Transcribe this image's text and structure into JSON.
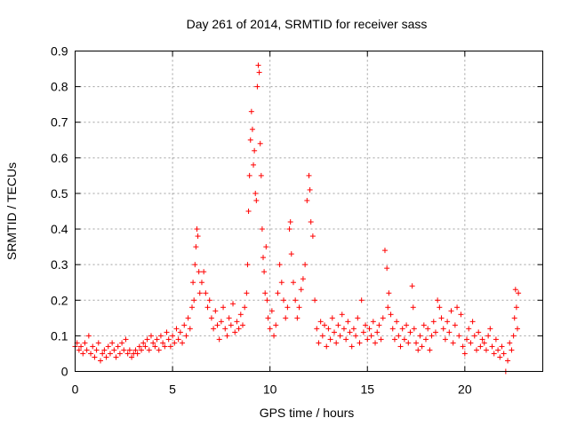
{
  "chart_data": {
    "type": "scatter",
    "title": "Day 261 of 2014, SRMTID for receiver sass",
    "xlabel": "GPS time / hours",
    "ylabel": "SRMTID / TECUs",
    "xlim": [
      0,
      24
    ],
    "ylim": [
      0,
      0.9
    ],
    "xticks": [
      0,
      5,
      10,
      15,
      20
    ],
    "xtick_labels": [
      "0",
      "5",
      "10",
      "15",
      "20"
    ],
    "yticks": [
      0,
      0.1,
      0.2,
      0.3,
      0.4,
      0.5,
      0.6,
      0.7,
      0.8,
      0.9
    ],
    "ytick_labels": [
      "0",
      "0.1",
      "0.2",
      "0.3",
      "0.4",
      "0.5",
      "0.6",
      "0.7",
      "0.8",
      "0.9"
    ],
    "grid": true,
    "marker": "+",
    "color": "#ff0000",
    "series": [
      {
        "name": "SRMTID",
        "points": [
          [
            0.0,
            0.07
          ],
          [
            0.1,
            0.08
          ],
          [
            0.2,
            0.06
          ],
          [
            0.3,
            0.07
          ],
          [
            0.4,
            0.05
          ],
          [
            0.5,
            0.08
          ],
          [
            0.6,
            0.06
          ],
          [
            0.7,
            0.1
          ],
          [
            0.8,
            0.05
          ],
          [
            0.9,
            0.07
          ],
          [
            1.0,
            0.04
          ],
          [
            1.1,
            0.06
          ],
          [
            1.2,
            0.08
          ],
          [
            1.3,
            0.03
          ],
          [
            1.4,
            0.05
          ],
          [
            1.5,
            0.06
          ],
          [
            1.6,
            0.04
          ],
          [
            1.7,
            0.07
          ],
          [
            1.8,
            0.05
          ],
          [
            1.9,
            0.08
          ],
          [
            2.0,
            0.06
          ],
          [
            2.1,
            0.04
          ],
          [
            2.2,
            0.07
          ],
          [
            2.3,
            0.05
          ],
          [
            2.4,
            0.08
          ],
          [
            2.5,
            0.06
          ],
          [
            2.6,
            0.09
          ],
          [
            2.7,
            0.05
          ],
          [
            2.8,
            0.06
          ],
          [
            2.9,
            0.04
          ],
          [
            3.0,
            0.05
          ],
          [
            3.1,
            0.06
          ],
          [
            3.2,
            0.05
          ],
          [
            3.3,
            0.07
          ],
          [
            3.4,
            0.06
          ],
          [
            3.5,
            0.08
          ],
          [
            3.6,
            0.07
          ],
          [
            3.7,
            0.09
          ],
          [
            3.8,
            0.06
          ],
          [
            3.9,
            0.1
          ],
          [
            4.0,
            0.08
          ],
          [
            4.1,
            0.07
          ],
          [
            4.2,
            0.09
          ],
          [
            4.3,
            0.06
          ],
          [
            4.4,
            0.1
          ],
          [
            4.5,
            0.08
          ],
          [
            4.6,
            0.07
          ],
          [
            4.7,
            0.11
          ],
          [
            4.8,
            0.09
          ],
          [
            4.9,
            0.07
          ],
          [
            5.0,
            0.1
          ],
          [
            5.1,
            0.08
          ],
          [
            5.2,
            0.12
          ],
          [
            5.3,
            0.09
          ],
          [
            5.4,
            0.11
          ],
          [
            5.5,
            0.08
          ],
          [
            5.6,
            0.13
          ],
          [
            5.7,
            0.1
          ],
          [
            5.8,
            0.15
          ],
          [
            5.9,
            0.12
          ],
          [
            6.0,
            0.18
          ],
          [
            6.05,
            0.25
          ],
          [
            6.1,
            0.2
          ],
          [
            6.15,
            0.3
          ],
          [
            6.2,
            0.35
          ],
          [
            6.25,
            0.4
          ],
          [
            6.3,
            0.38
          ],
          [
            6.35,
            0.28
          ],
          [
            6.4,
            0.22
          ],
          [
            6.5,
            0.25
          ],
          [
            6.6,
            0.28
          ],
          [
            6.7,
            0.22
          ],
          [
            6.8,
            0.18
          ],
          [
            6.9,
            0.2
          ],
          [
            7.0,
            0.15
          ],
          [
            7.1,
            0.12
          ],
          [
            7.2,
            0.17
          ],
          [
            7.3,
            0.13
          ],
          [
            7.4,
            0.09
          ],
          [
            7.5,
            0.14
          ],
          [
            7.6,
            0.18
          ],
          [
            7.7,
            0.12
          ],
          [
            7.8,
            0.1
          ],
          [
            7.9,
            0.15
          ],
          [
            8.0,
            0.13
          ],
          [
            8.1,
            0.19
          ],
          [
            8.2,
            0.11
          ],
          [
            8.3,
            0.14
          ],
          [
            8.4,
            0.12
          ],
          [
            8.5,
            0.16
          ],
          [
            8.6,
            0.13
          ],
          [
            8.7,
            0.18
          ],
          [
            8.8,
            0.22
          ],
          [
            8.85,
            0.3
          ],
          [
            8.9,
            0.45
          ],
          [
            8.95,
            0.55
          ],
          [
            9.0,
            0.65
          ],
          [
            9.05,
            0.73
          ],
          [
            9.1,
            0.68
          ],
          [
            9.15,
            0.58
          ],
          [
            9.2,
            0.62
          ],
          [
            9.25,
            0.5
          ],
          [
            9.3,
            0.48
          ],
          [
            9.35,
            0.8
          ],
          [
            9.4,
            0.86
          ],
          [
            9.45,
            0.84
          ],
          [
            9.5,
            0.64
          ],
          [
            9.55,
            0.55
          ],
          [
            9.6,
            0.4
          ],
          [
            9.65,
            0.32
          ],
          [
            9.7,
            0.28
          ],
          [
            9.75,
            0.22
          ],
          [
            9.8,
            0.35
          ],
          [
            9.85,
            0.2
          ],
          [
            9.9,
            0.15
          ],
          [
            10.0,
            0.12
          ],
          [
            10.1,
            0.17
          ],
          [
            10.2,
            0.1
          ],
          [
            10.3,
            0.13
          ],
          [
            10.4,
            0.22
          ],
          [
            10.5,
            0.3
          ],
          [
            10.6,
            0.25
          ],
          [
            10.7,
            0.2
          ],
          [
            10.8,
            0.15
          ],
          [
            10.9,
            0.18
          ],
          [
            11.0,
            0.4
          ],
          [
            11.05,
            0.42
          ],
          [
            11.1,
            0.33
          ],
          [
            11.2,
            0.25
          ],
          [
            11.3,
            0.2
          ],
          [
            11.4,
            0.15
          ],
          [
            11.5,
            0.18
          ],
          [
            11.6,
            0.23
          ],
          [
            11.7,
            0.26
          ],
          [
            11.8,
            0.3
          ],
          [
            11.9,
            0.48
          ],
          [
            12.0,
            0.55
          ],
          [
            12.05,
            0.51
          ],
          [
            12.1,
            0.42
          ],
          [
            12.2,
            0.38
          ],
          [
            12.3,
            0.2
          ],
          [
            12.4,
            0.12
          ],
          [
            12.5,
            0.08
          ],
          [
            12.6,
            0.14
          ],
          [
            12.7,
            0.1
          ],
          [
            12.8,
            0.13
          ],
          [
            12.9,
            0.07
          ],
          [
            13.0,
            0.12
          ],
          [
            13.1,
            0.09
          ],
          [
            13.2,
            0.15
          ],
          [
            13.3,
            0.11
          ],
          [
            13.4,
            0.08
          ],
          [
            13.5,
            0.13
          ],
          [
            13.6,
            0.1
          ],
          [
            13.7,
            0.16
          ],
          [
            13.8,
            0.12
          ],
          [
            13.9,
            0.09
          ],
          [
            14.0,
            0.14
          ],
          [
            14.1,
            0.11
          ],
          [
            14.2,
            0.07
          ],
          [
            14.3,
            0.12
          ],
          [
            14.4,
            0.1
          ],
          [
            14.5,
            0.15
          ],
          [
            14.6,
            0.08
          ],
          [
            14.7,
            0.2
          ],
          [
            14.8,
            0.11
          ],
          [
            14.9,
            0.13
          ],
          [
            15.0,
            0.09
          ],
          [
            15.1,
            0.12
          ],
          [
            15.2,
            0.1
          ],
          [
            15.3,
            0.14
          ],
          [
            15.4,
            0.08
          ],
          [
            15.5,
            0.11
          ],
          [
            15.6,
            0.13
          ],
          [
            15.7,
            0.09
          ],
          [
            15.8,
            0.15
          ],
          [
            15.9,
            0.34
          ],
          [
            16.0,
            0.29
          ],
          [
            16.05,
            0.18
          ],
          [
            16.1,
            0.22
          ],
          [
            16.2,
            0.16
          ],
          [
            16.3,
            0.12
          ],
          [
            16.4,
            0.09
          ],
          [
            16.5,
            0.14
          ],
          [
            16.6,
            0.1
          ],
          [
            16.7,
            0.07
          ],
          [
            16.8,
            0.12
          ],
          [
            16.9,
            0.09
          ],
          [
            17.0,
            0.13
          ],
          [
            17.1,
            0.08
          ],
          [
            17.2,
            0.11
          ],
          [
            17.3,
            0.24
          ],
          [
            17.35,
            0.18
          ],
          [
            17.4,
            0.12
          ],
          [
            17.5,
            0.08
          ],
          [
            17.6,
            0.06
          ],
          [
            17.7,
            0.1
          ],
          [
            17.8,
            0.07
          ],
          [
            17.9,
            0.13
          ],
          [
            18.0,
            0.09
          ],
          [
            18.1,
            0.12
          ],
          [
            18.2,
            0.06
          ],
          [
            18.3,
            0.1
          ],
          [
            18.4,
            0.14
          ],
          [
            18.5,
            0.11
          ],
          [
            18.6,
            0.2
          ],
          [
            18.7,
            0.18
          ],
          [
            18.8,
            0.15
          ],
          [
            18.9,
            0.12
          ],
          [
            19.0,
            0.09
          ],
          [
            19.1,
            0.14
          ],
          [
            19.2,
            0.11
          ],
          [
            19.3,
            0.17
          ],
          [
            19.4,
            0.08
          ],
          [
            19.5,
            0.13
          ],
          [
            19.6,
            0.18
          ],
          [
            19.7,
            0.1
          ],
          [
            19.8,
            0.16
          ],
          [
            19.9,
            0.07
          ],
          [
            20.0,
            0.05
          ],
          [
            20.1,
            0.09
          ],
          [
            20.2,
            0.12
          ],
          [
            20.3,
            0.08
          ],
          [
            20.4,
            0.14
          ],
          [
            20.5,
            0.1
          ],
          [
            20.6,
            0.06
          ],
          [
            20.7,
            0.11
          ],
          [
            20.8,
            0.07
          ],
          [
            20.9,
            0.09
          ],
          [
            21.0,
            0.08
          ],
          [
            21.1,
            0.06
          ],
          [
            21.2,
            0.1
          ],
          [
            21.3,
            0.12
          ],
          [
            21.4,
            0.07
          ],
          [
            21.5,
            0.05
          ],
          [
            21.6,
            0.09
          ],
          [
            21.7,
            0.06
          ],
          [
            21.8,
            0.04
          ],
          [
            21.9,
            0.07
          ],
          [
            22.0,
            0.05
          ],
          [
            22.1,
            0.0
          ],
          [
            22.2,
            0.03
          ],
          [
            22.3,
            0.08
          ],
          [
            22.4,
            0.06
          ],
          [
            22.5,
            0.1
          ],
          [
            22.55,
            0.15
          ],
          [
            22.6,
            0.23
          ],
          [
            22.65,
            0.18
          ],
          [
            22.7,
            0.12
          ],
          [
            22.75,
            0.22
          ]
        ]
      }
    ]
  }
}
